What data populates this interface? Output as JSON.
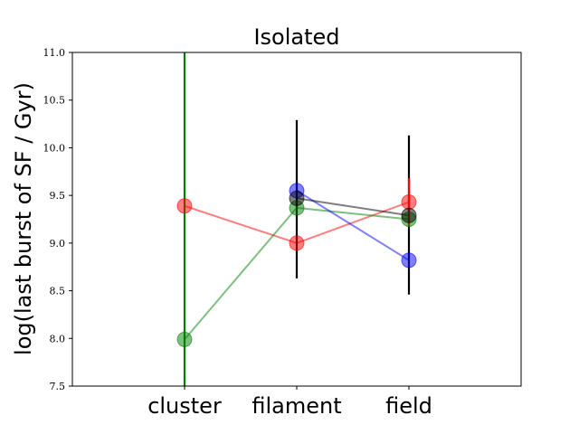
{
  "chart_data": {
    "type": "line",
    "title": "Isolated",
    "xlabel": "",
    "ylabel": "log(last burst of SF / Gyr)",
    "categories": [
      "cluster",
      "filament",
      "field"
    ],
    "ylim": [
      7.5,
      11.0
    ],
    "yticks": [
      "7.5",
      "8.0",
      "8.5",
      "9.0",
      "9.5",
      "10.0",
      "10.5",
      "11.0"
    ],
    "grid": false,
    "series": [
      {
        "color": "#ff0000",
        "values": [
          9.39,
          9.0,
          9.43
        ]
      },
      {
        "color": "#008000",
        "values": [
          7.99,
          9.37,
          9.25
        ]
      },
      {
        "color": "#0000ff",
        "values": [
          null,
          9.55,
          8.82
        ]
      },
      {
        "color": "#000000",
        "values": [
          null,
          9.47,
          9.29
        ]
      }
    ],
    "errorbars": [
      {
        "color": "#008000",
        "category": "cluster",
        "low": 7.5,
        "high": 11.0
      },
      {
        "color": "#000000",
        "category": "filament",
        "low": 8.63,
        "high": 10.29
      },
      {
        "color": "#000000",
        "category": "field",
        "low": 8.46,
        "high": 10.13
      },
      {
        "color": "#ff0000",
        "category": "field",
        "low": 9.18,
        "high": 9.68
      }
    ]
  }
}
